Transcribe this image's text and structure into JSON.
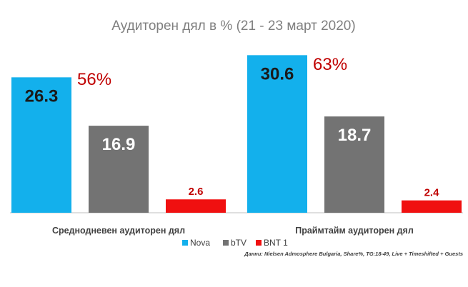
{
  "chart_data": {
    "type": "bar",
    "title": "Аудиторен дял в % (21 - 23 март 2020)",
    "categories": [
      "Среднодневен аудиторен дял",
      "Праймтайм аудиторен дял"
    ],
    "series": [
      {
        "name": "Nova",
        "values": [
          26.3,
          30.6
        ],
        "color": "#13b0ec",
        "label_color": "#1a1a1a"
      },
      {
        "name": "bTV",
        "values": [
          16.9,
          18.7
        ],
        "color": "#737373",
        "label_color": "#ffffff"
      },
      {
        "name": "BNT 1",
        "values": [
          2.6,
          2.4
        ],
        "color": "#f01010",
        "label_color": "#c00000"
      }
    ],
    "annotations": [
      "56%",
      "63%"
    ],
    "annotation_color": "#c00000",
    "ylim": [
      0,
      33
    ],
    "grid": false,
    "legend": "bottom"
  },
  "source_note": "Данни: Nielsen Admosphere Bulgaria, Share%, TG:18-49, Live + Timeshifted + Guests"
}
